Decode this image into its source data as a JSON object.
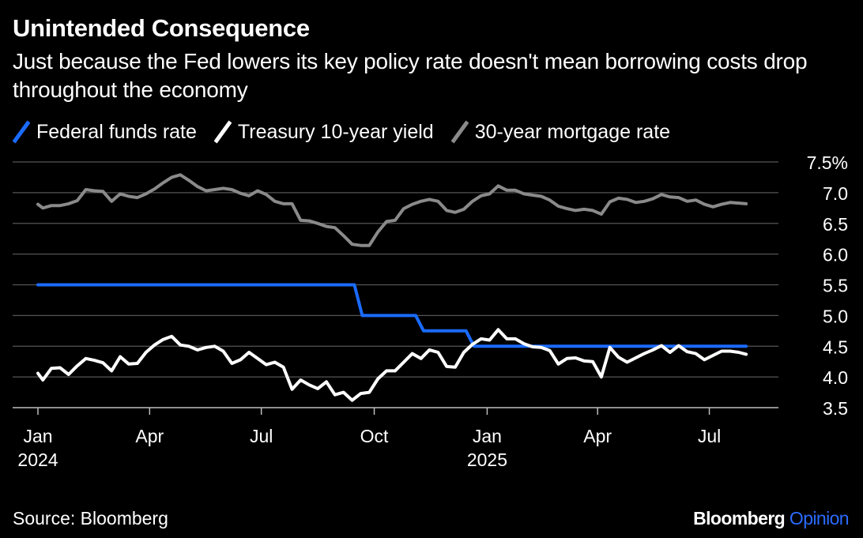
{
  "header": {
    "title": "Unintended Consequence",
    "subtitle": "Just because the Fed lowers its key policy rate doesn't mean borrowing costs drop throughout the economy"
  },
  "footer": {
    "source": "Source: Bloomberg",
    "brand_main": "Bloomberg",
    "brand_accent": "Opinion"
  },
  "colors": {
    "background": "#000000",
    "fed": "#1a6bff",
    "treasury": "#ffffff",
    "mortgage": "#8a8a8a",
    "grid": "#555555",
    "brand_accent": "#2b6bff"
  },
  "chart_data": {
    "type": "line",
    "title": "Unintended Consequence",
    "subtitle": "Just because the Fed lowers its key policy rate doesn't mean borrowing costs drop throughout the economy",
    "xlabel": "",
    "ylabel": "",
    "ylim": [
      3.5,
      7.5
    ],
    "xlim": [
      "2024-01-01",
      "2025-08-07"
    ],
    "y_ticks": [
      "7.5%",
      "7.0",
      "6.5",
      "6.0",
      "5.5",
      "5.0",
      "4.5",
      "4.0",
      "3.5"
    ],
    "x_ticks": [
      {
        "date": "2024-01-01",
        "label": "Jan",
        "sublabel": "2024"
      },
      {
        "date": "2024-04-01",
        "label": "Apr",
        "sublabel": ""
      },
      {
        "date": "2024-07-01",
        "label": "Jul",
        "sublabel": ""
      },
      {
        "date": "2024-10-01",
        "label": "Oct",
        "sublabel": ""
      },
      {
        "date": "2025-01-01",
        "label": "Jan",
        "sublabel": "2025"
      },
      {
        "date": "2025-04-01",
        "label": "Apr",
        "sublabel": ""
      },
      {
        "date": "2025-07-01",
        "label": "Jul",
        "sublabel": ""
      }
    ],
    "grid": true,
    "legend_position": "top-left",
    "series": [
      {
        "name": "Federal funds rate",
        "key": "fed",
        "step": true,
        "points": [
          [
            "2024-01-01",
            5.5
          ],
          [
            "2024-09-18",
            5.0
          ],
          [
            "2024-11-07",
            4.75
          ],
          [
            "2024-12-18",
            4.5
          ],
          [
            "2025-07-31",
            4.5
          ]
        ]
      },
      {
        "name": "Treasury 10-year yield",
        "key": "treasury",
        "step": false,
        "points": [
          [
            "2024-01-01",
            4.06
          ],
          [
            "2024-01-05",
            3.95
          ],
          [
            "2024-01-12",
            4.14
          ],
          [
            "2024-01-19",
            4.15
          ],
          [
            "2024-01-26",
            4.04
          ],
          [
            "2024-02-02",
            4.18
          ],
          [
            "2024-02-09",
            4.3
          ],
          [
            "2024-02-16",
            4.27
          ],
          [
            "2024-02-23",
            4.23
          ],
          [
            "2024-03-01",
            4.1
          ],
          [
            "2024-03-08",
            4.33
          ],
          [
            "2024-03-15",
            4.21
          ],
          [
            "2024-03-22",
            4.22
          ],
          [
            "2024-03-29",
            4.4
          ],
          [
            "2024-04-05",
            4.52
          ],
          [
            "2024-04-12",
            4.61
          ],
          [
            "2024-04-19",
            4.66
          ],
          [
            "2024-04-26",
            4.52
          ],
          [
            "2024-05-03",
            4.5
          ],
          [
            "2024-05-10",
            4.44
          ],
          [
            "2024-05-17",
            4.48
          ],
          [
            "2024-05-24",
            4.5
          ],
          [
            "2024-05-31",
            4.42
          ],
          [
            "2024-06-07",
            4.22
          ],
          [
            "2024-06-14",
            4.28
          ],
          [
            "2024-06-21",
            4.4
          ],
          [
            "2024-06-28",
            4.3
          ],
          [
            "2024-07-05",
            4.2
          ],
          [
            "2024-07-12",
            4.24
          ],
          [
            "2024-07-19",
            4.16
          ],
          [
            "2024-07-26",
            3.8
          ],
          [
            "2024-08-02",
            3.95
          ],
          [
            "2024-08-09",
            3.87
          ],
          [
            "2024-08-16",
            3.81
          ],
          [
            "2024-08-23",
            3.92
          ],
          [
            "2024-08-30",
            3.71
          ],
          [
            "2024-09-06",
            3.75
          ],
          [
            "2024-09-13",
            3.62
          ],
          [
            "2024-09-20",
            3.73
          ],
          [
            "2024-09-27",
            3.75
          ],
          [
            "2024-10-04",
            3.97
          ],
          [
            "2024-10-11",
            4.1
          ],
          [
            "2024-10-18",
            4.1
          ],
          [
            "2024-10-25",
            4.24
          ],
          [
            "2024-11-01",
            4.38
          ],
          [
            "2024-11-08",
            4.3
          ],
          [
            "2024-11-15",
            4.44
          ],
          [
            "2024-11-22",
            4.4
          ],
          [
            "2024-11-29",
            4.17
          ],
          [
            "2024-12-06",
            4.16
          ],
          [
            "2024-12-13",
            4.4
          ],
          [
            "2024-12-20",
            4.53
          ],
          [
            "2024-12-27",
            4.62
          ],
          [
            "2025-01-03",
            4.6
          ],
          [
            "2025-01-10",
            4.77
          ],
          [
            "2025-01-17",
            4.62
          ],
          [
            "2025-01-24",
            4.62
          ],
          [
            "2025-01-31",
            4.54
          ],
          [
            "2025-02-07",
            4.49
          ],
          [
            "2025-02-14",
            4.48
          ],
          [
            "2025-02-21",
            4.43
          ],
          [
            "2025-02-28",
            4.21
          ],
          [
            "2025-03-07",
            4.3
          ],
          [
            "2025-03-14",
            4.31
          ],
          [
            "2025-03-21",
            4.26
          ],
          [
            "2025-03-28",
            4.25
          ],
          [
            "2025-04-04",
            4.0
          ],
          [
            "2025-04-11",
            4.48
          ],
          [
            "2025-04-18",
            4.32
          ],
          [
            "2025-04-25",
            4.24
          ],
          [
            "2025-05-02",
            4.31
          ],
          [
            "2025-05-09",
            4.38
          ],
          [
            "2025-05-16",
            4.44
          ],
          [
            "2025-05-23",
            4.51
          ],
          [
            "2025-05-30",
            4.4
          ],
          [
            "2025-06-06",
            4.51
          ],
          [
            "2025-06-13",
            4.41
          ],
          [
            "2025-06-20",
            4.38
          ],
          [
            "2025-06-27",
            4.28
          ],
          [
            "2025-07-04",
            4.35
          ],
          [
            "2025-07-11",
            4.42
          ],
          [
            "2025-07-18",
            4.42
          ],
          [
            "2025-07-25",
            4.4
          ],
          [
            "2025-07-31",
            4.37
          ]
        ]
      },
      {
        "name": "30-year mortgage rate",
        "key": "mortgage",
        "step": false,
        "points": [
          [
            "2024-01-01",
            6.81
          ],
          [
            "2024-01-05",
            6.75
          ],
          [
            "2024-01-12",
            6.79
          ],
          [
            "2024-01-19",
            6.79
          ],
          [
            "2024-01-26",
            6.82
          ],
          [
            "2024-02-02",
            6.87
          ],
          [
            "2024-02-09",
            7.05
          ],
          [
            "2024-02-16",
            7.03
          ],
          [
            "2024-02-23",
            7.02
          ],
          [
            "2024-03-01",
            6.86
          ],
          [
            "2024-03-08",
            6.98
          ],
          [
            "2024-03-15",
            6.94
          ],
          [
            "2024-03-22",
            6.92
          ],
          [
            "2024-03-29",
            6.98
          ],
          [
            "2024-04-05",
            7.06
          ],
          [
            "2024-04-12",
            7.16
          ],
          [
            "2024-04-19",
            7.25
          ],
          [
            "2024-04-26",
            7.29
          ],
          [
            "2024-05-03",
            7.2
          ],
          [
            "2024-05-10",
            7.1
          ],
          [
            "2024-05-17",
            7.03
          ],
          [
            "2024-05-24",
            7.05
          ],
          [
            "2024-05-31",
            7.07
          ],
          [
            "2024-06-07",
            7.05
          ],
          [
            "2024-06-14",
            6.99
          ],
          [
            "2024-06-21",
            6.95
          ],
          [
            "2024-06-28",
            7.03
          ],
          [
            "2024-07-05",
            6.97
          ],
          [
            "2024-07-12",
            6.86
          ],
          [
            "2024-07-19",
            6.82
          ],
          [
            "2024-07-26",
            6.82
          ],
          [
            "2024-08-02",
            6.55
          ],
          [
            "2024-08-09",
            6.54
          ],
          [
            "2024-08-16",
            6.5
          ],
          [
            "2024-08-23",
            6.45
          ],
          [
            "2024-08-30",
            6.43
          ],
          [
            "2024-09-06",
            6.3
          ],
          [
            "2024-09-13",
            6.16
          ],
          [
            "2024-09-20",
            6.14
          ],
          [
            "2024-09-27",
            6.14
          ],
          [
            "2024-10-04",
            6.36
          ],
          [
            "2024-10-11",
            6.53
          ],
          [
            "2024-10-18",
            6.55
          ],
          [
            "2024-10-25",
            6.74
          ],
          [
            "2024-11-01",
            6.81
          ],
          [
            "2024-11-08",
            6.86
          ],
          [
            "2024-11-15",
            6.89
          ],
          [
            "2024-11-22",
            6.86
          ],
          [
            "2024-11-29",
            6.71
          ],
          [
            "2024-12-06",
            6.68
          ],
          [
            "2024-12-13",
            6.73
          ],
          [
            "2024-12-20",
            6.86
          ],
          [
            "2024-12-27",
            6.95
          ],
          [
            "2025-01-03",
            6.98
          ],
          [
            "2025-01-10",
            7.11
          ],
          [
            "2025-01-17",
            7.04
          ],
          [
            "2025-01-24",
            7.04
          ],
          [
            "2025-01-31",
            6.98
          ],
          [
            "2025-02-07",
            6.96
          ],
          [
            "2025-02-14",
            6.94
          ],
          [
            "2025-02-21",
            6.88
          ],
          [
            "2025-02-28",
            6.78
          ],
          [
            "2025-03-07",
            6.74
          ],
          [
            "2025-03-14",
            6.71
          ],
          [
            "2025-03-21",
            6.73
          ],
          [
            "2025-03-28",
            6.71
          ],
          [
            "2025-04-04",
            6.65
          ],
          [
            "2025-04-11",
            6.85
          ],
          [
            "2025-04-18",
            6.91
          ],
          [
            "2025-04-25",
            6.89
          ],
          [
            "2025-05-02",
            6.84
          ],
          [
            "2025-05-09",
            6.86
          ],
          [
            "2025-05-16",
            6.9
          ],
          [
            "2025-05-23",
            6.97
          ],
          [
            "2025-05-30",
            6.93
          ],
          [
            "2025-06-06",
            6.92
          ],
          [
            "2025-06-13",
            6.86
          ],
          [
            "2025-06-20",
            6.88
          ],
          [
            "2025-06-27",
            6.81
          ],
          [
            "2025-07-04",
            6.77
          ],
          [
            "2025-07-11",
            6.81
          ],
          [
            "2025-07-18",
            6.84
          ],
          [
            "2025-07-25",
            6.83
          ],
          [
            "2025-07-31",
            6.82
          ]
        ]
      }
    ]
  }
}
